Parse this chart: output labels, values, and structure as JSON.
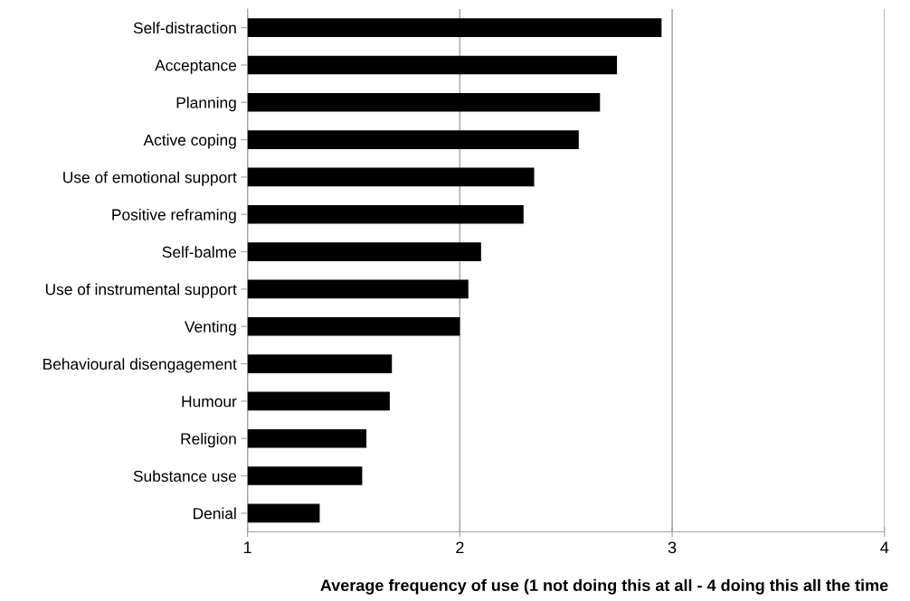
{
  "chart_data": {
    "type": "bar",
    "orientation": "horizontal",
    "xlabel": "Average frequency of use (1 not doing this at all - 4 doing this all the time",
    "categories": [
      "Self-distraction",
      "Acceptance",
      "Planning",
      "Active coping",
      "Use of emotional support",
      "Positive reframing",
      "Self-balme",
      "Use of instrumental support",
      "Venting",
      "Behavioural disengagement",
      "Humour",
      "Religion",
      "Substance use",
      "Denial"
    ],
    "values": [
      2.95,
      2.74,
      2.66,
      2.56,
      2.35,
      2.3,
      2.1,
      2.04,
      2.0,
      1.68,
      1.67,
      1.56,
      1.54,
      1.34
    ],
    "color": "#000000",
    "xlim": [
      1,
      4
    ],
    "xticks": [
      1,
      2,
      3,
      4
    ],
    "grid": "x",
    "legend": false
  }
}
